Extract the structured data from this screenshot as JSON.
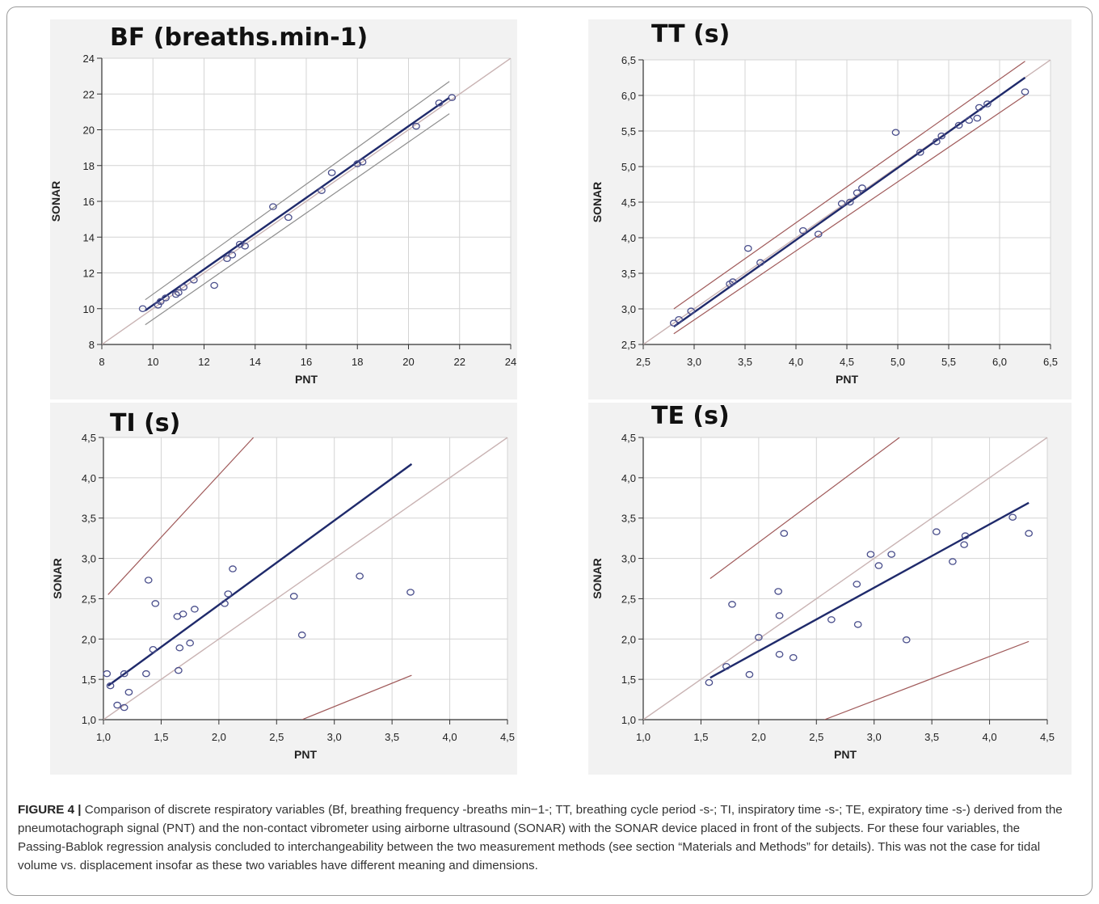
{
  "caption": {
    "label": "FIGURE 4 |",
    "text": "Comparison of discrete respiratory variables (Bf, breathing frequency -breaths min−1-; TT, breathing cycle period -s-; TI, inspiratory time -s-; TE, expiratory time -s-) derived from the pneumotachograph signal (PNT) and the non-contact vibrometer using airborne ultrasound (SONAR) with the SONAR device placed in front of the subjects. For these four variables, the Passing-Bablok regression analysis concluded to interchangeability between the two measurement methods (see section “Materials and Methods” for details). This was not the case for tidal volume vs. displacement insofar as these two variables have different meaning and dimensions."
  },
  "colors": {
    "regression": "#1f2a6b",
    "identity": "#c9b3b3",
    "ci_gray": "#8e8e8e",
    "ci_red": "#a05a5a",
    "points": "#4a4f8c",
    "grid": "#d4d4d4"
  },
  "chart_data": [
    {
      "type": "scatter",
      "title": "BF (breaths.min-1)",
      "xlabel": "PNT",
      "ylabel": "SONAR",
      "xlim": [
        8,
        24
      ],
      "ylim": [
        8,
        24
      ],
      "grid": true,
      "xticks": [
        "8",
        "10",
        "12",
        "14",
        "16",
        "18",
        "20",
        "22",
        "24"
      ],
      "yticks": [
        "8",
        "10",
        "12",
        "14",
        "16",
        "18",
        "20",
        "22",
        "24"
      ],
      "points": [
        [
          9.6,
          10.0
        ],
        [
          10.2,
          10.2
        ],
        [
          10.3,
          10.4
        ],
        [
          10.5,
          10.6
        ],
        [
          10.9,
          10.8
        ],
        [
          11.0,
          10.9
        ],
        [
          11.2,
          11.2
        ],
        [
          11.6,
          11.6
        ],
        [
          12.4,
          11.3
        ],
        [
          12.9,
          12.8
        ],
        [
          13.1,
          13.0
        ],
        [
          13.4,
          13.6
        ],
        [
          13.6,
          13.5
        ],
        [
          14.7,
          15.7
        ],
        [
          15.3,
          15.1
        ],
        [
          16.6,
          16.6
        ],
        [
          17.0,
          17.6
        ],
        [
          18.0,
          18.1
        ],
        [
          18.2,
          18.2
        ],
        [
          20.3,
          20.2
        ],
        [
          21.2,
          21.5
        ],
        [
          21.7,
          21.8
        ]
      ],
      "regression": [
        [
          9.7,
          9.9
        ],
        [
          21.6,
          21.8
        ]
      ],
      "ci_upper": [
        [
          9.7,
          10.5
        ],
        [
          21.6,
          22.7
        ]
      ],
      "ci_lower": [
        [
          9.7,
          9.1
        ],
        [
          21.6,
          20.9
        ]
      ],
      "identity": [
        [
          8,
          8
        ],
        [
          24,
          24
        ]
      ]
    },
    {
      "type": "scatter",
      "title": "TT (s)",
      "xlabel": "PNT",
      "ylabel": "SONAR",
      "xlim": [
        2.5,
        6.5
      ],
      "ylim": [
        2.5,
        6.5
      ],
      "grid": true,
      "xticks": [
        "2,5",
        "3,0",
        "3,5",
        "4,0",
        "4,5",
        "5,0",
        "5,5",
        "6,0",
        "6,5"
      ],
      "yticks": [
        "2,5",
        "3,0",
        "3,5",
        "4,0",
        "4,5",
        "5,0",
        "5,5",
        "6,0",
        "6,5"
      ],
      "points": [
        [
          2.8,
          2.8
        ],
        [
          2.85,
          2.85
        ],
        [
          2.97,
          2.97
        ],
        [
          3.35,
          3.35
        ],
        [
          3.38,
          3.38
        ],
        [
          3.53,
          3.85
        ],
        [
          3.65,
          3.65
        ],
        [
          4.07,
          4.1
        ],
        [
          4.22,
          4.05
        ],
        [
          4.45,
          4.48
        ],
        [
          4.53,
          4.5
        ],
        [
          4.6,
          4.63
        ],
        [
          4.65,
          4.7
        ],
        [
          4.98,
          5.48
        ],
        [
          5.22,
          5.2
        ],
        [
          5.38,
          5.35
        ],
        [
          5.43,
          5.43
        ],
        [
          5.6,
          5.58
        ],
        [
          5.7,
          5.65
        ],
        [
          5.78,
          5.68
        ],
        [
          5.8,
          5.83
        ],
        [
          5.88,
          5.88
        ],
        [
          6.25,
          6.05
        ]
      ],
      "regression": [
        [
          2.8,
          2.75
        ],
        [
          6.25,
          6.25
        ]
      ],
      "ci_upper": [
        [
          2.8,
          3.0
        ],
        [
          6.25,
          6.48
        ]
      ],
      "ci_lower": [
        [
          2.8,
          2.65
        ],
        [
          6.25,
          6.0
        ]
      ],
      "identity": [
        [
          2.5,
          2.5
        ],
        [
          6.5,
          6.5
        ]
      ]
    },
    {
      "type": "scatter",
      "title": "TI (s)",
      "xlabel": "PNT",
      "ylabel": "SONAR",
      "xlim": [
        1.0,
        4.5
      ],
      "ylim": [
        1.0,
        4.5
      ],
      "grid": true,
      "xticks": [
        "1,0",
        "1,5",
        "2,0",
        "2,5",
        "3,0",
        "3,5",
        "4,0",
        "4,5"
      ],
      "yticks": [
        "1,0",
        "1,5",
        "2,0",
        "2,5",
        "3,0",
        "3,5",
        "4,0",
        "4,5"
      ],
      "points": [
        [
          1.03,
          1.57
        ],
        [
          1.06,
          1.42
        ],
        [
          1.12,
          1.18
        ],
        [
          1.18,
          1.15
        ],
        [
          1.18,
          1.57
        ],
        [
          1.22,
          1.34
        ],
        [
          1.37,
          1.57
        ],
        [
          1.39,
          2.73
        ],
        [
          1.43,
          1.87
        ],
        [
          1.45,
          2.44
        ],
        [
          1.64,
          2.28
        ],
        [
          1.65,
          1.61
        ],
        [
          1.66,
          1.89
        ],
        [
          1.69,
          2.31
        ],
        [
          1.75,
          1.95
        ],
        [
          1.79,
          2.37
        ],
        [
          2.05,
          2.44
        ],
        [
          2.08,
          2.56
        ],
        [
          2.12,
          2.87
        ],
        [
          2.65,
          2.53
        ],
        [
          2.72,
          2.05
        ],
        [
          3.22,
          2.78
        ],
        [
          3.66,
          2.58
        ]
      ],
      "regression": [
        [
          1.04,
          1.42
        ],
        [
          3.67,
          4.17
        ]
      ],
      "ci_upper": [
        [
          1.04,
          2.55
        ],
        [
          2.3,
          4.5
        ]
      ],
      "ci_lower": [
        [
          2.72,
          1.0
        ],
        [
          3.67,
          1.55
        ]
      ],
      "identity": [
        [
          1.0,
          1.0
        ],
        [
          4.5,
          4.5
        ]
      ]
    },
    {
      "type": "scatter",
      "title": "TE (s)",
      "xlabel": "PNT",
      "ylabel": "SONAR",
      "xlim": [
        1.0,
        4.5
      ],
      "ylim": [
        1.0,
        4.5
      ],
      "grid": true,
      "xticks": [
        "1,0",
        "1,5",
        "2,0",
        "2,5",
        "3,0",
        "3,5",
        "4,0",
        "4,5"
      ],
      "yticks": [
        "1,0",
        "1,5",
        "2,0",
        "2,5",
        "3,0",
        "3,5",
        "4,0",
        "4,5"
      ],
      "points": [
        [
          1.57,
          1.46
        ],
        [
          1.72,
          1.66
        ],
        [
          1.77,
          2.43
        ],
        [
          1.92,
          1.56
        ],
        [
          2.0,
          2.02
        ],
        [
          2.17,
          2.59
        ],
        [
          2.18,
          2.29
        ],
        [
          2.18,
          1.81
        ],
        [
          2.22,
          3.31
        ],
        [
          2.3,
          1.77
        ],
        [
          2.63,
          2.24
        ],
        [
          2.85,
          2.68
        ],
        [
          2.86,
          2.18
        ],
        [
          2.97,
          3.05
        ],
        [
          3.04,
          2.91
        ],
        [
          3.15,
          3.05
        ],
        [
          3.28,
          1.99
        ],
        [
          3.54,
          3.33
        ],
        [
          3.68,
          2.96
        ],
        [
          3.78,
          3.17
        ],
        [
          3.79,
          3.28
        ],
        [
          4.2,
          3.51
        ],
        [
          4.34,
          3.31
        ]
      ],
      "regression": [
        [
          1.58,
          1.52
        ],
        [
          4.34,
          3.69
        ]
      ],
      "ci_upper": [
        [
          1.58,
          2.75
        ],
        [
          3.22,
          4.5
        ]
      ],
      "ci_lower": [
        [
          2.57,
          1.0
        ],
        [
          4.34,
          1.97
        ]
      ],
      "identity": [
        [
          1.0,
          1.0
        ],
        [
          4.5,
          4.5
        ]
      ]
    }
  ]
}
